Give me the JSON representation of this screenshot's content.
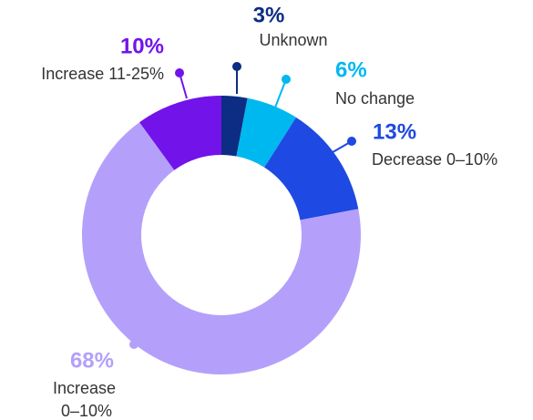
{
  "chart_data": {
    "type": "pie",
    "categories": [
      "Unknown",
      "No change",
      "Decrease 0–10%",
      "Increase 0–10%",
      "Increase 11-25%"
    ],
    "values": [
      3,
      6,
      13,
      68,
      10
    ],
    "value_labels": [
      "3%",
      "6%",
      "13%",
      "68%",
      "10%"
    ],
    "colors": [
      "#0c2d83",
      "#00b8f0",
      "#1e49e2",
      "#b4a0fa",
      "#7213ea"
    ],
    "donut": true
  }
}
